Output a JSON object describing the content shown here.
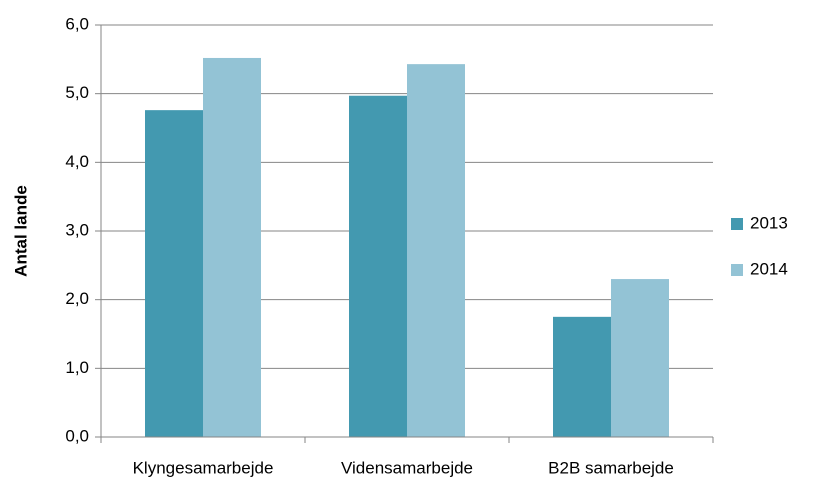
{
  "chart_data": {
    "type": "bar",
    "categories": [
      "Klyngesamarbejde",
      "Vidensamarbejde",
      "B2B samarbejde"
    ],
    "series": [
      {
        "name": "2013",
        "color": "#4399b0",
        "values": [
          4.76,
          4.97,
          1.75
        ]
      },
      {
        "name": "2014",
        "color": "#93c3d5",
        "values": [
          5.52,
          5.43,
          2.3
        ]
      }
    ],
    "y_label": "Antal lande",
    "ylim": [
      0,
      6
    ],
    "yticks": [
      {
        "value": 0,
        "label": "0,0"
      },
      {
        "value": 1,
        "label": "1,0"
      },
      {
        "value": 2,
        "label": "2,0"
      },
      {
        "value": 3,
        "label": "3,0"
      },
      {
        "value": 4,
        "label": "4,0"
      },
      {
        "value": 5,
        "label": "5,0"
      },
      {
        "value": 6,
        "label": "6,0"
      }
    ],
    "grid": true,
    "legend": "right"
  }
}
